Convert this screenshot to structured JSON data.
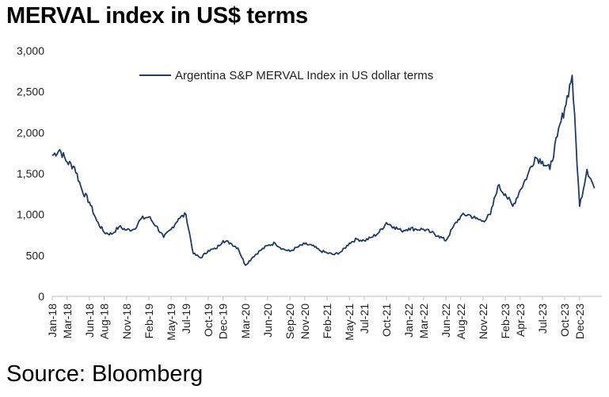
{
  "title": "MERVAL index in US$ terms",
  "source": "Source: Bloomberg",
  "colors": {
    "series": "#1f3b66",
    "axis": "#bfbfbf",
    "text": "#222222"
  },
  "chart_data": {
    "type": "line",
    "title": "MERVAL index in US$ terms",
    "xlabel": "",
    "ylabel": "",
    "ylim": [
      0,
      3000
    ],
    "yticks": [
      0,
      500,
      1000,
      1500,
      2000,
      2500,
      3000
    ],
    "ytick_labels": [
      "0",
      "500",
      "1,000",
      "1,500",
      "2,000",
      "2,500",
      "3,000"
    ],
    "xlim": [
      "Jan-18",
      "Mar-24"
    ],
    "xtick_labels": [
      "Jan-18",
      "Mar-18",
      "Jun-18",
      "Aug-18",
      "Nov-18",
      "Feb-19",
      "May-19",
      "Jul-19",
      "Oct-19",
      "Dec-19",
      "Mar-20",
      "Jun-20",
      "Sep-20",
      "Nov-20",
      "Feb-21",
      "May-21",
      "Jul-21",
      "Oct-21",
      "Jan-22",
      "Mar-22",
      "Jun-22",
      "Aug-22",
      "Nov-22",
      "Feb-23",
      "Apr-23",
      "Jul-23",
      "Oct-23",
      "Dec-23"
    ],
    "grid": false,
    "legend": "top",
    "series": [
      {
        "name": "Argentina S&P MERVAL Index in US dollar terms",
        "x": [
          "2018-01",
          "2018-02",
          "2018-03",
          "2018-04",
          "2018-05",
          "2018-06",
          "2018-07",
          "2018-08",
          "2018-09",
          "2018-10",
          "2018-11",
          "2018-12",
          "2019-01",
          "2019-02",
          "2019-03",
          "2019-04",
          "2019-05",
          "2019-06",
          "2019-07",
          "2019-08",
          "2019-09",
          "2019-10",
          "2019-11",
          "2019-12",
          "2020-01",
          "2020-02",
          "2020-03",
          "2020-04",
          "2020-05",
          "2020-06",
          "2020-07",
          "2020-08",
          "2020-09",
          "2020-10",
          "2020-11",
          "2020-12",
          "2021-01",
          "2021-02",
          "2021-03",
          "2021-04",
          "2021-05",
          "2021-06",
          "2021-07",
          "2021-08",
          "2021-09",
          "2021-10",
          "2021-11",
          "2021-12",
          "2022-01",
          "2022-02",
          "2022-03",
          "2022-04",
          "2022-05",
          "2022-06",
          "2022-07",
          "2022-08",
          "2022-09",
          "2022-10",
          "2022-11",
          "2022-12",
          "2023-01",
          "2023-02",
          "2023-03",
          "2023-04",
          "2023-05",
          "2023-06",
          "2023-07",
          "2023-08",
          "2023-09",
          "2023-10",
          "2023-11",
          "2023-12",
          "2024-01",
          "2024-02"
        ],
        "values": [
          1720,
          1790,
          1640,
          1580,
          1300,
          1150,
          920,
          780,
          760,
          850,
          810,
          820,
          950,
          970,
          860,
          720,
          820,
          950,
          1000,
          520,
          470,
          560,
          580,
          680,
          650,
          590,
          380,
          480,
          560,
          620,
          650,
          580,
          550,
          600,
          640,
          620,
          560,
          530,
          510,
          550,
          650,
          700,
          680,
          720,
          780,
          900,
          850,
          800,
          830,
          820,
          820,
          780,
          740,
          680,
          850,
          980,
          1000,
          950,
          920,
          1000,
          1350,
          1250,
          1100,
          1300,
          1480,
          1700,
          1650,
          1550,
          1950,
          2300,
          2700,
          1100,
          1550,
          1320
        ]
      }
    ]
  }
}
